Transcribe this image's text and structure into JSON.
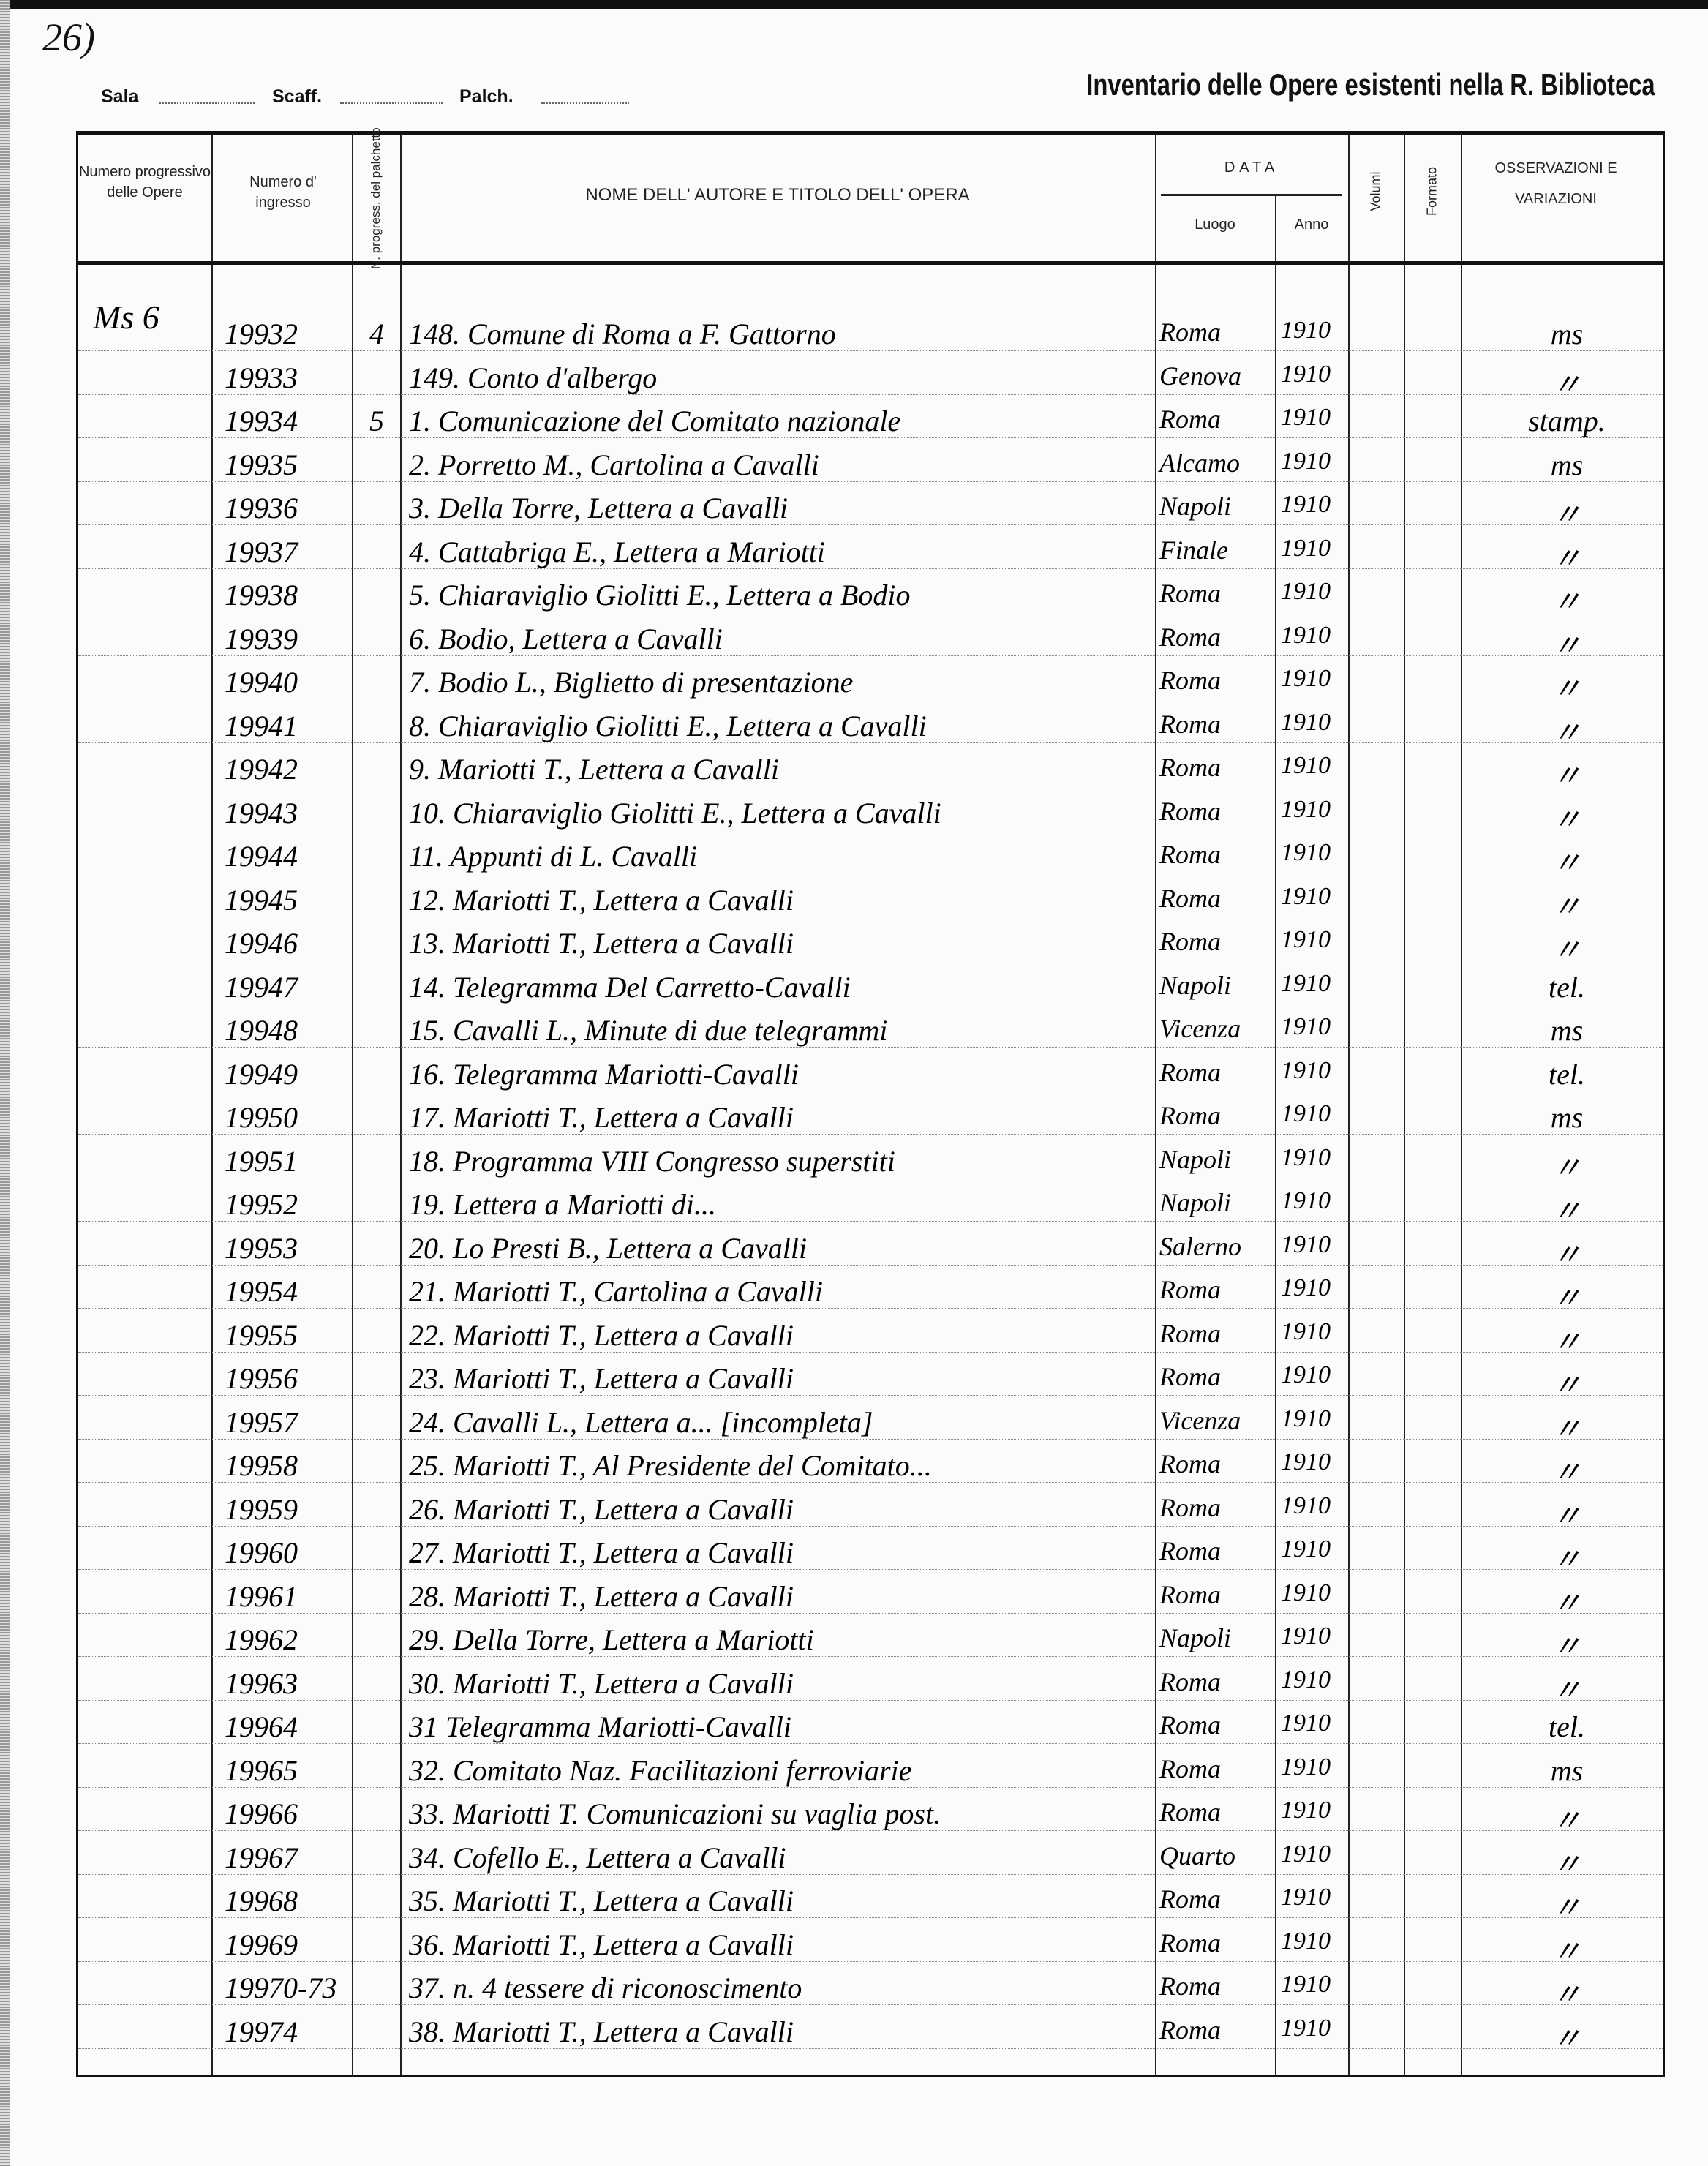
{
  "page_number": "26)",
  "header": {
    "sala_label": "Sala",
    "scaff_label": "Scaff.",
    "palch_label": "Palch.",
    "title": "Inventario delle Opere esistenti nella R. Biblioteca"
  },
  "columns": {
    "numero_progressivo": "Numero progressivo delle Opere",
    "numero_ingresso": "Numero d' ingresso",
    "n_progress_palchetto": "N. progress. del palchetto",
    "nome_autore_titolo": "NOME DELL' AUTORE E TITOLO DELL' OPERA",
    "data": "DATA",
    "luogo": "Luogo",
    "anno": "Anno",
    "volumi": "Volumi",
    "formato": "Formato",
    "osservazioni": "OSSERVAZIONI E VARIAZIONI"
  },
  "shelfmark": "Ms 6",
  "rows": [
    {
      "ingresso": "19932",
      "palchetto": "4",
      "titolo": "148. Comune di Roma a F. Gattorno",
      "luogo": "Roma",
      "anno": "1910",
      "oss": "ms"
    },
    {
      "ingresso": "19933",
      "palchetto": "",
      "titolo": "149. Conto d'albergo",
      "luogo": "Genova",
      "anno": "1910",
      "oss": "〃"
    },
    {
      "ingresso": "19934",
      "palchetto": "5",
      "titolo": "1. Comunicazione del Comitato nazionale",
      "luogo": "Roma",
      "anno": "1910",
      "oss": "stamp."
    },
    {
      "ingresso": "19935",
      "palchetto": "",
      "titolo": "2. Porretto M., Cartolina a Cavalli",
      "luogo": "Alcamo",
      "anno": "1910",
      "oss": "ms"
    },
    {
      "ingresso": "19936",
      "palchetto": "",
      "titolo": "3. Della Torre, Lettera a Cavalli",
      "luogo": "Napoli",
      "anno": "1910",
      "oss": "〃"
    },
    {
      "ingresso": "19937",
      "palchetto": "",
      "titolo": "4. Cattabriga E., Lettera a Mariotti",
      "luogo": "Finale",
      "anno": "1910",
      "oss": "〃"
    },
    {
      "ingresso": "19938",
      "palchetto": "",
      "titolo": "5. Chiaraviglio Giolitti E., Lettera a Bodio",
      "luogo": "Roma",
      "anno": "1910",
      "oss": "〃"
    },
    {
      "ingresso": "19939",
      "palchetto": "",
      "titolo": "6. Bodio, Lettera a Cavalli",
      "luogo": "Roma",
      "anno": "1910",
      "oss": "〃"
    },
    {
      "ingresso": "19940",
      "palchetto": "",
      "titolo": "7. Bodio L., Biglietto di presentazione",
      "luogo": "Roma",
      "anno": "1910",
      "oss": "〃"
    },
    {
      "ingresso": "19941",
      "palchetto": "",
      "titolo": "8. Chiaraviglio Giolitti E., Lettera a Cavalli",
      "luogo": "Roma",
      "anno": "1910",
      "oss": "〃"
    },
    {
      "ingresso": "19942",
      "palchetto": "",
      "titolo": "9. Mariotti T., Lettera a Cavalli",
      "luogo": "Roma",
      "anno": "1910",
      "oss": "〃"
    },
    {
      "ingresso": "19943",
      "palchetto": "",
      "titolo": "10. Chiaraviglio Giolitti E., Lettera a Cavalli",
      "luogo": "Roma",
      "anno": "1910",
      "oss": "〃"
    },
    {
      "ingresso": "19944",
      "palchetto": "",
      "titolo": "11. Appunti di L. Cavalli",
      "luogo": "Roma",
      "anno": "1910",
      "oss": "〃"
    },
    {
      "ingresso": "19945",
      "palchetto": "",
      "titolo": "12. Mariotti T., Lettera a Cavalli",
      "luogo": "Roma",
      "anno": "1910",
      "oss": "〃"
    },
    {
      "ingresso": "19946",
      "palchetto": "",
      "titolo": "13. Mariotti T., Lettera a Cavalli",
      "luogo": "Roma",
      "anno": "1910",
      "oss": "〃"
    },
    {
      "ingresso": "19947",
      "palchetto": "",
      "titolo": "14. Telegramma Del Carretto-Cavalli",
      "luogo": "Napoli",
      "anno": "1910",
      "oss": "tel."
    },
    {
      "ingresso": "19948",
      "palchetto": "",
      "titolo": "15. Cavalli L., Minute di due telegrammi",
      "luogo": "Vicenza",
      "anno": "1910",
      "oss": "ms"
    },
    {
      "ingresso": "19949",
      "palchetto": "",
      "titolo": "16. Telegramma Mariotti-Cavalli",
      "luogo": "Roma",
      "anno": "1910",
      "oss": "tel."
    },
    {
      "ingresso": "19950",
      "palchetto": "",
      "titolo": "17. Mariotti T., Lettera a Cavalli",
      "luogo": "Roma",
      "anno": "1910",
      "oss": "ms"
    },
    {
      "ingresso": "19951",
      "palchetto": "",
      "titolo": "18. Programma VIII Congresso superstiti",
      "luogo": "Napoli",
      "anno": "1910",
      "oss": "〃"
    },
    {
      "ingresso": "19952",
      "palchetto": "",
      "titolo": "19. Lettera a Mariotti di...",
      "luogo": "Napoli",
      "anno": "1910",
      "oss": "〃"
    },
    {
      "ingresso": "19953",
      "palchetto": "",
      "titolo": "20. Lo Presti B., Lettera a Cavalli",
      "luogo": "Salerno",
      "anno": "1910",
      "oss": "〃"
    },
    {
      "ingresso": "19954",
      "palchetto": "",
      "titolo": "21. Mariotti T., Cartolina a Cavalli",
      "luogo": "Roma",
      "anno": "1910",
      "oss": "〃"
    },
    {
      "ingresso": "19955",
      "palchetto": "",
      "titolo": "22. Mariotti T., Lettera a Cavalli",
      "luogo": "Roma",
      "anno": "1910",
      "oss": "〃"
    },
    {
      "ingresso": "19956",
      "palchetto": "",
      "titolo": "23. Mariotti T., Lettera a Cavalli",
      "luogo": "Roma",
      "anno": "1910",
      "oss": "〃"
    },
    {
      "ingresso": "19957",
      "palchetto": "",
      "titolo": "24. Cavalli L., Lettera a... [incompleta]",
      "luogo": "Vicenza",
      "anno": "1910",
      "oss": "〃"
    },
    {
      "ingresso": "19958",
      "palchetto": "",
      "titolo": "25. Mariotti T., Al Presidente del Comitato...",
      "luogo": "Roma",
      "anno": "1910",
      "oss": "〃"
    },
    {
      "ingresso": "19959",
      "palchetto": "",
      "titolo": "26. Mariotti T., Lettera a Cavalli",
      "luogo": "Roma",
      "anno": "1910",
      "oss": "〃"
    },
    {
      "ingresso": "19960",
      "palchetto": "",
      "titolo": "27. Mariotti T., Lettera a Cavalli",
      "luogo": "Roma",
      "anno": "1910",
      "oss": "〃"
    },
    {
      "ingresso": "19961",
      "palchetto": "",
      "titolo": "28. Mariotti T., Lettera a Cavalli",
      "luogo": "Roma",
      "anno": "1910",
      "oss": "〃"
    },
    {
      "ingresso": "19962",
      "palchetto": "",
      "titolo": "29. Della Torre, Lettera a Mariotti",
      "luogo": "Napoli",
      "anno": "1910",
      "oss": "〃"
    },
    {
      "ingresso": "19963",
      "palchetto": "",
      "titolo": "30. Mariotti T., Lettera a Cavalli",
      "luogo": "Roma",
      "anno": "1910",
      "oss": "〃"
    },
    {
      "ingresso": "19964",
      "palchetto": "",
      "titolo": "31 Telegramma Mariotti-Cavalli",
      "luogo": "Roma",
      "anno": "1910",
      "oss": "tel."
    },
    {
      "ingresso": "19965",
      "palchetto": "",
      "titolo": "32. Comitato Naz. Facilitazioni ferroviarie",
      "luogo": "Roma",
      "anno": "1910",
      "oss": "ms"
    },
    {
      "ingresso": "19966",
      "palchetto": "",
      "titolo": "33. Mariotti T. Comunicazioni su vaglia post.",
      "luogo": "Roma",
      "anno": "1910",
      "oss": "〃"
    },
    {
      "ingresso": "19967",
      "palchetto": "",
      "titolo": "34. Cofello E., Lettera a Cavalli",
      "luogo": "Quarto",
      "anno": "1910",
      "oss": "〃"
    },
    {
      "ingresso": "19968",
      "palchetto": "",
      "titolo": "35. Mariotti T., Lettera a Cavalli",
      "luogo": "Roma",
      "anno": "1910",
      "oss": "〃"
    },
    {
      "ingresso": "19969",
      "palchetto": "",
      "titolo": "36. Mariotti T., Lettera a Cavalli",
      "luogo": "Roma",
      "anno": "1910",
      "oss": "〃"
    },
    {
      "ingresso": "19970-73",
      "palchetto": "",
      "titolo": "37. n. 4 tessere di riconoscimento",
      "luogo": "Roma",
      "anno": "1910",
      "oss": "〃"
    },
    {
      "ingresso": "19974",
      "palchetto": "",
      "titolo": "38. Mariotti T., Lettera a Cavalli",
      "luogo": "Roma",
      "anno": "1910",
      "oss": "〃"
    }
  ]
}
